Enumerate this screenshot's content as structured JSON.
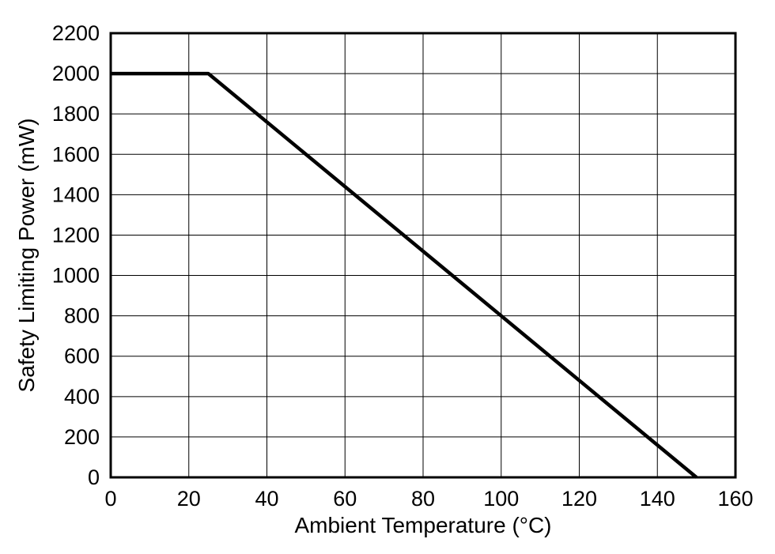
{
  "chart_data": {
    "type": "line",
    "title": "",
    "xlabel": "Ambient Temperature (°C)",
    "ylabel": "Safety Limiting Power (mW)",
    "xlim": [
      0,
      160
    ],
    "ylim": [
      0,
      2200
    ],
    "x_ticks": [
      0,
      20,
      40,
      60,
      80,
      100,
      120,
      140,
      160
    ],
    "y_ticks": [
      0,
      200,
      400,
      600,
      800,
      1000,
      1200,
      1400,
      1600,
      1800,
      2000,
      2200
    ],
    "grid": true,
    "legend": "none",
    "line_color": "#000000",
    "background_color": "#ffffff",
    "series": [
      {
        "name": "safety-limiting-power",
        "color": "#000000",
        "points": [
          [
            0,
            2000
          ],
          [
            25,
            2000
          ],
          [
            150,
            0
          ]
        ]
      }
    ]
  }
}
